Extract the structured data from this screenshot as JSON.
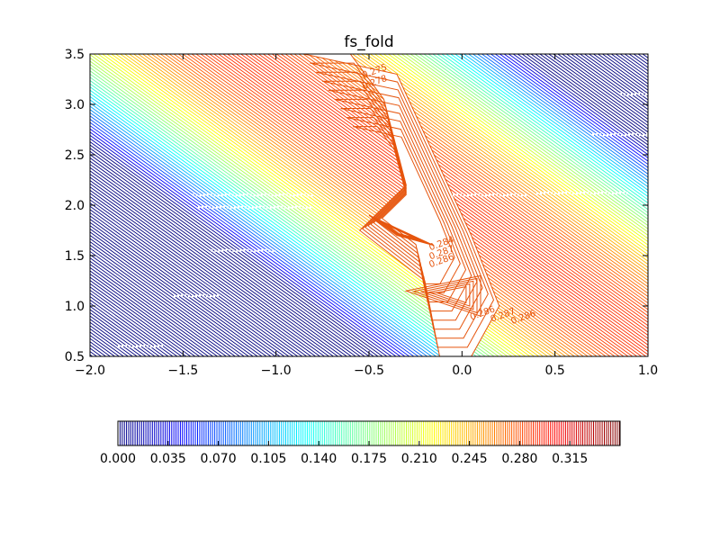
{
  "chart_data": {
    "type": "contour",
    "title": "fs_fold",
    "xlabel": "",
    "ylabel": "",
    "xlim": [
      -2.0,
      1.0
    ],
    "ylim": [
      0.5,
      3.5
    ],
    "x_ticks": [
      -2.0,
      -1.5,
      -1.0,
      -0.5,
      0.0,
      0.5,
      1.0
    ],
    "x_tick_labels": [
      "−2.0",
      "−1.5",
      "−1.0",
      "−0.5",
      "0.0",
      "0.5",
      "1.0"
    ],
    "y_ticks": [
      0.5,
      1.0,
      1.5,
      2.0,
      2.5,
      3.0,
      3.5
    ],
    "y_tick_labels": [
      "0.5",
      "1.0",
      "1.5",
      "2.0",
      "2.5",
      "3.0",
      "3.5"
    ],
    "colorbar": {
      "orientation": "horizontal",
      "colormap": "jet",
      "range": [
        0.0,
        0.35
      ],
      "ticks": [
        0.0,
        0.035,
        0.07,
        0.105,
        0.14,
        0.175,
        0.21,
        0.245,
        0.28,
        0.315
      ],
      "tick_labels": [
        "0.000",
        "0.035",
        "0.070",
        "0.105",
        "0.140",
        "0.175",
        "0.210",
        "0.245",
        "0.280",
        "0.315"
      ]
    },
    "contour_labels": [
      {
        "text": "0.275",
        "x": -0.53,
        "y": 3.26
      },
      {
        "text": "0.278",
        "x": -0.53,
        "y": 3.15
      },
      {
        "text": "0.284",
        "x": -0.17,
        "y": 1.55
      },
      {
        "text": "0.287",
        "x": -0.17,
        "y": 1.46
      },
      {
        "text": "0.286",
        "x": -0.17,
        "y": 1.38
      },
      {
        "text": "0.286",
        "x": 0.05,
        "y": 0.86
      },
      {
        "text": "0.287",
        "x": 0.16,
        "y": 0.84
      },
      {
        "text": "0.286",
        "x": 0.27,
        "y": 0.82
      }
    ]
  },
  "colors": {
    "accent_orange": "#e6550d",
    "jet_low": "#00007f",
    "jet_high": "#7f0000"
  }
}
